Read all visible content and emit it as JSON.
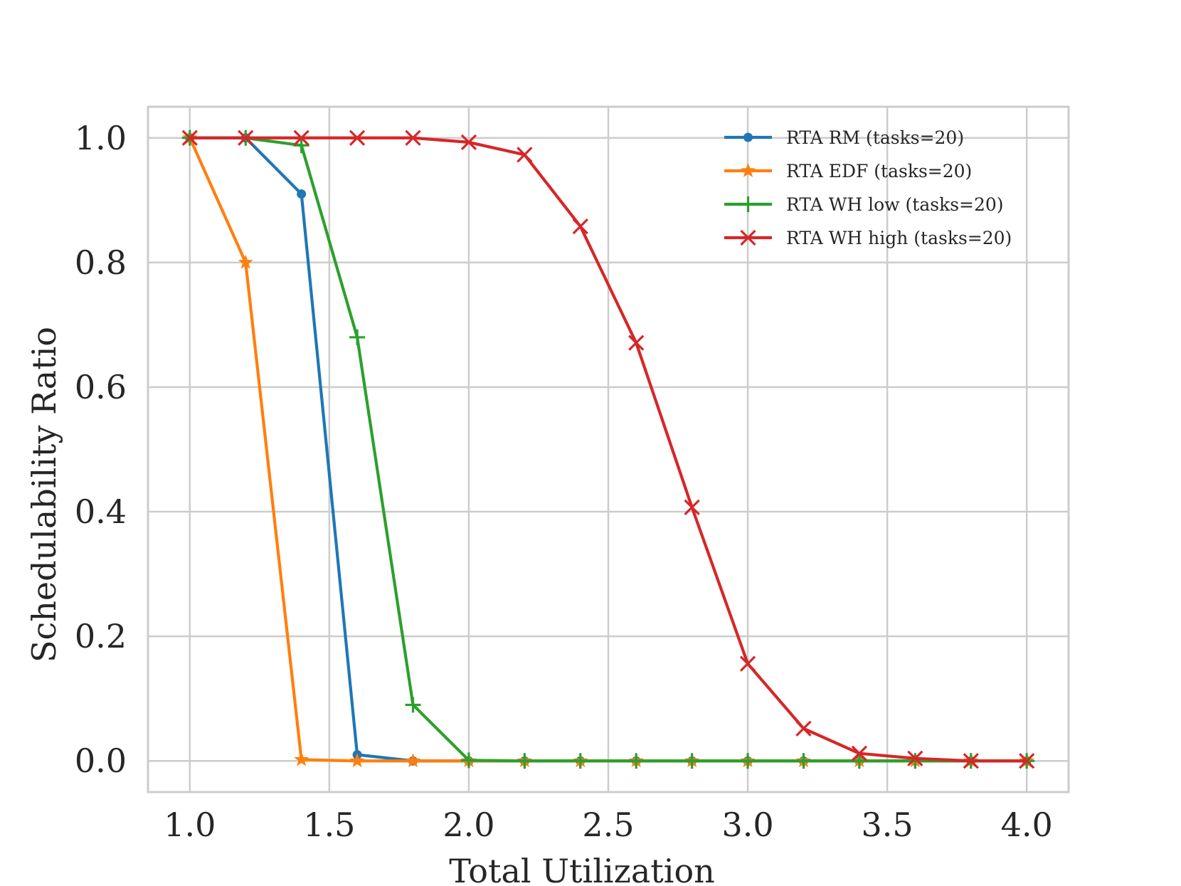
{
  "chart_data": {
    "type": "line",
    "title": "",
    "xlabel": "Total Utilization",
    "ylabel": "Schedulability Ratio",
    "xlim": [
      0.85,
      4.15
    ],
    "ylim": [
      -0.05,
      1.05
    ],
    "xticks": [
      1.0,
      1.5,
      2.0,
      2.5,
      3.0,
      3.5,
      4.0
    ],
    "xtick_labels": [
      "1.0",
      "1.5",
      "2.0",
      "2.5",
      "3.0",
      "3.5",
      "4.0"
    ],
    "yticks": [
      0.0,
      0.2,
      0.4,
      0.6,
      0.8,
      1.0
    ],
    "ytick_labels": [
      "0.0",
      "0.2",
      "0.4",
      "0.6",
      "0.8",
      "1.0"
    ],
    "grid": true,
    "legend_position": "top-right",
    "x": [
      1.0,
      1.2,
      1.4,
      1.6,
      1.8,
      2.0,
      2.2,
      2.4,
      2.6,
      2.8,
      3.0,
      3.2,
      3.4,
      3.6,
      3.8,
      4.0
    ],
    "series": [
      {
        "name": "RTA RM (tasks=20)",
        "color": "#1f77b4",
        "marker": "circle",
        "values": [
          1.0,
          1.0,
          0.91,
          0.01,
          0.0,
          0.0,
          0.0,
          0.0,
          0.0,
          0.0,
          0.0,
          0.0,
          0.0,
          0.0,
          0.0,
          0.0
        ]
      },
      {
        "name": "RTA EDF (tasks=20)",
        "color": "#ff7f0e",
        "marker": "star",
        "values": [
          1.0,
          0.8,
          0.002,
          0.0,
          0.0,
          0.0,
          0.0,
          0.0,
          0.0,
          0.0,
          0.0,
          0.0,
          0.0,
          0.0,
          0.0,
          0.0
        ]
      },
      {
        "name": "RTA WH low (tasks=20)",
        "color": "#2ca02c",
        "marker": "plus",
        "values": [
          1.0,
          1.0,
          0.988,
          0.68,
          0.09,
          0.001,
          0.0,
          0.0,
          0.0,
          0.0,
          0.0,
          0.0,
          0.0,
          0.0,
          0.0,
          0.0
        ]
      },
      {
        "name": "RTA WH high (tasks=20)",
        "color": "#d62728",
        "marker": "x",
        "values": [
          1.0,
          1.0,
          1.0,
          1.0,
          1.0,
          0.993,
          0.973,
          0.858,
          0.671,
          0.407,
          0.156,
          0.052,
          0.012,
          0.004,
          0.0,
          0.0
        ]
      }
    ]
  }
}
